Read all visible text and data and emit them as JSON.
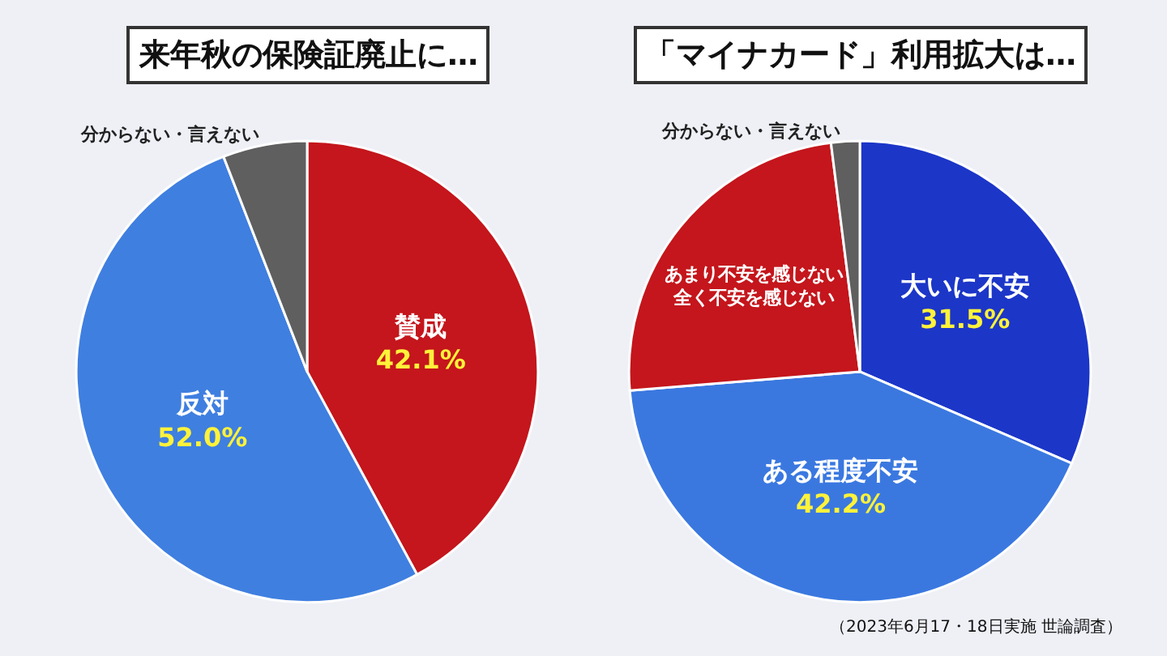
{
  "chart_data": [
    {
      "type": "pie",
      "title": "来年秋の保険証廃止に…",
      "categories": [
        "賛成",
        "反対",
        "分からない・言えない"
      ],
      "values": [
        42.1,
        52.0,
        5.9
      ],
      "value_labels": [
        "42.1%",
        "52.0%",
        null
      ],
      "colors": [
        "#c4161c",
        "#3f7fe0",
        "#5f5f5f"
      ]
    },
    {
      "type": "pie",
      "title": "「マイナカード」利用拡大は…",
      "categories": [
        "大いに不安",
        "ある程度不安",
        "あまり不安を感じない全く不安を感じない",
        "分からない・言えない"
      ],
      "values": [
        31.5,
        42.2,
        24.3,
        2.0
      ],
      "value_labels": [
        "31.5%",
        "42.2%",
        null,
        null
      ],
      "colors": [
        "#1c36c8",
        "#3a78e0",
        "#c4161c",
        "#5f5f5f"
      ],
      "annotations": [
        "（2023年6月17・18日実施 世論調査）"
      ]
    }
  ]
}
